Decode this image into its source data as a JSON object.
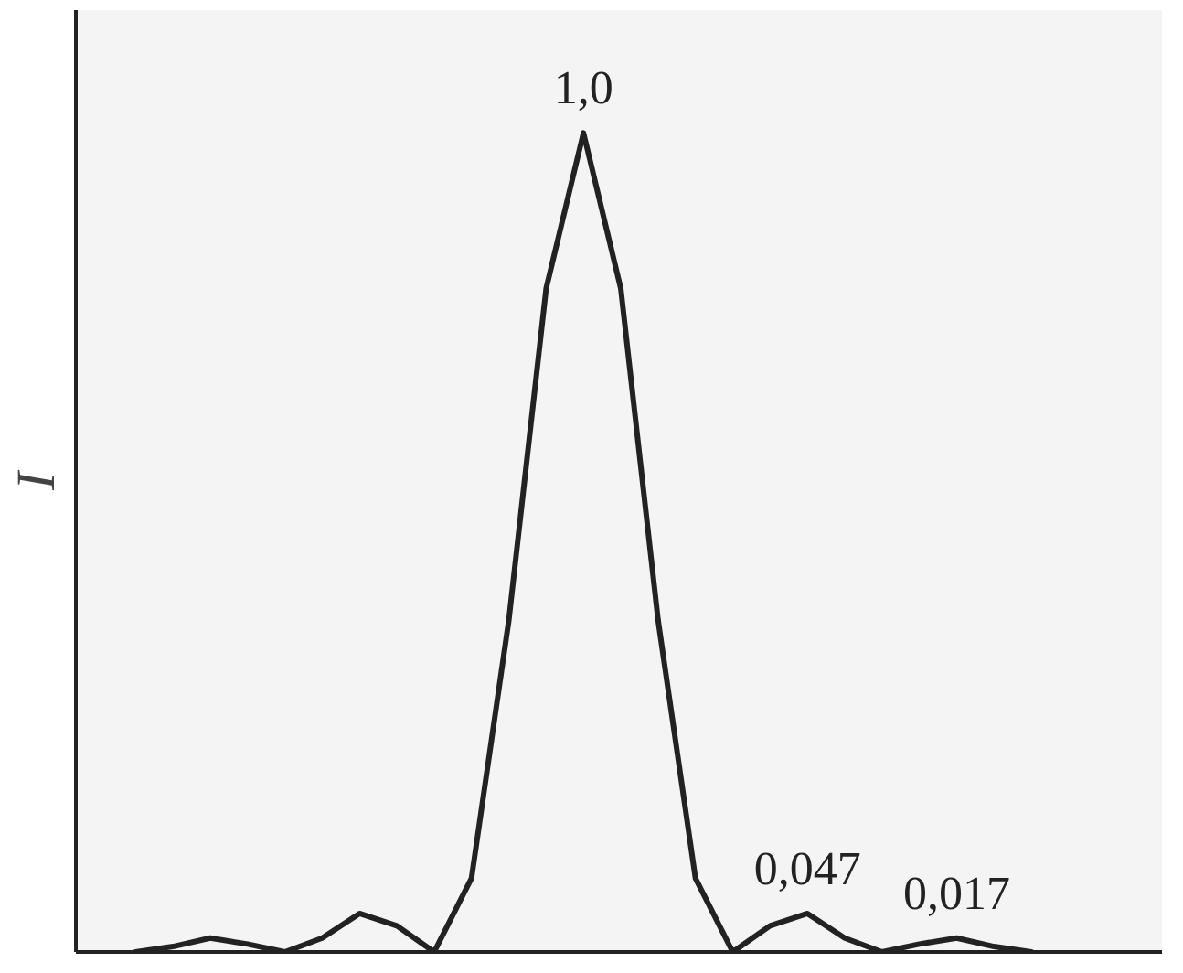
{
  "chart_data": {
    "type": "line",
    "ylabel": "I",
    "color": "#222222",
    "categories": [
      null,
      null,
      null,
      null,
      null,
      null,
      null,
      null,
      null,
      null,
      null,
      null,
      null,
      null,
      null,
      null,
      null,
      null,
      null,
      null,
      null,
      null,
      null,
      null,
      null
    ],
    "values": [
      0,
      0.0066,
      0.017,
      0.0096,
      0,
      0.017,
      0.047,
      0.032,
      0,
      0.09,
      0.405,
      0.81,
      1.0,
      0.81,
      0.405,
      0.09,
      0,
      0.032,
      0.047,
      0.017,
      0,
      0.0096,
      0.017,
      0.0066,
      0
    ],
    "value_labels": [
      null,
      null,
      null,
      null,
      null,
      null,
      null,
      null,
      null,
      null,
      null,
      null,
      "1,0",
      null,
      null,
      null,
      null,
      null,
      "0,047",
      null,
      null,
      null,
      "0,017",
      null,
      null
    ],
    "ylim": [
      0,
      1.15
    ]
  }
}
